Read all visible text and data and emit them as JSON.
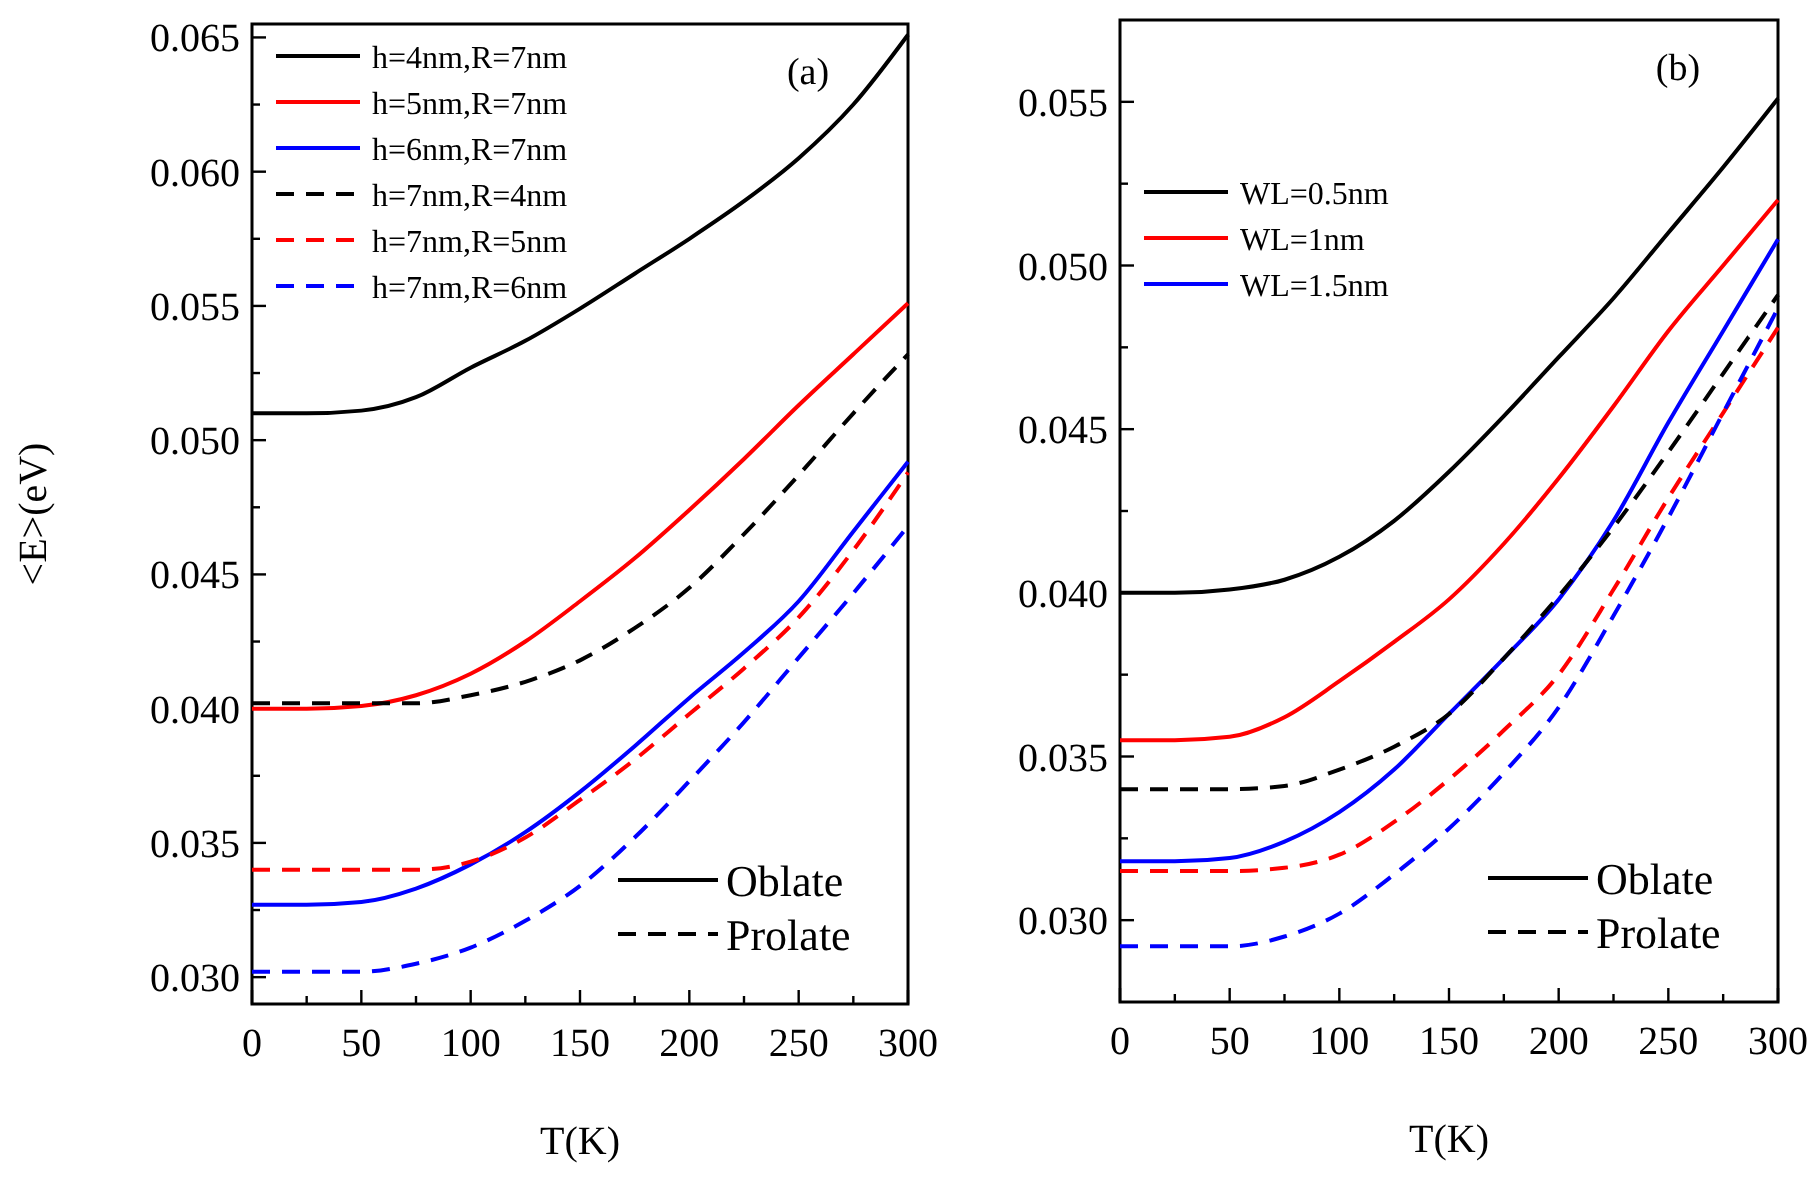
{
  "chart_data": [
    {
      "type": "line",
      "title": "(a)",
      "xlabel": "T(K)",
      "ylabel": "<E>(eV)",
      "x": [
        0,
        25,
        50,
        75,
        100,
        125,
        150,
        175,
        200,
        225,
        250,
        275,
        300
      ],
      "xlim": [
        0,
        300
      ],
      "xticks": [
        0,
        {
          "value": 25,
          "label": null
        },
        50,
        {
          "value": 75,
          "label": null
        },
        100,
        {
          "value": 125,
          "label": null
        },
        150,
        {
          "value": 175,
          "label": null
        },
        200,
        {
          "value": 225,
          "label": null
        },
        250,
        {
          "value": 275,
          "label": null
        },
        300
      ],
      "ylim": [
        0.029,
        0.0655
      ],
      "yticks": [
        {
          "value": 0.03,
          "label": "0.030"
        },
        {
          "value": 0.0325,
          "label": null
        },
        {
          "value": 0.035,
          "label": "0.035"
        },
        {
          "value": 0.0375,
          "label": null
        },
        {
          "value": 0.04,
          "label": "0.040"
        },
        {
          "value": 0.0425,
          "label": null
        },
        {
          "value": 0.045,
          "label": "0.045"
        },
        {
          "value": 0.0475,
          "label": null
        },
        {
          "value": 0.05,
          "label": "0.050"
        },
        {
          "value": 0.0525,
          "label": null
        },
        {
          "value": 0.055,
          "label": "0.055"
        },
        {
          "value": 0.0575,
          "label": null
        },
        {
          "value": 0.06,
          "label": "0.060"
        },
        {
          "value": 0.0625,
          "label": null
        },
        {
          "value": 0.065,
          "label": "0.065"
        }
      ],
      "legend": "top left",
      "annotations": [
        "Oblate",
        "Prolate"
      ],
      "series": [
        {
          "name": "h=4nm,R=7nm",
          "color": "#000000",
          "line_style": "solid",
          "values": [
            0.051,
            0.051,
            0.0511,
            0.0516,
            0.0527,
            0.0537,
            0.0549,
            0.0562,
            0.0575,
            0.0589,
            0.0605,
            0.0625,
            0.0651
          ]
        },
        {
          "name": "h=5nm,R=7nm",
          "color": "#ff0000",
          "line_style": "solid",
          "values": [
            0.04,
            0.04,
            0.0401,
            0.0405,
            0.0413,
            0.0425,
            0.044,
            0.0456,
            0.0474,
            0.0493,
            0.0513,
            0.0532,
            0.0551
          ]
        },
        {
          "name": "h=6nm,R=7nm",
          "color": "#0000ff",
          "line_style": "solid",
          "values": [
            0.0327,
            0.0327,
            0.0328,
            0.0333,
            0.0342,
            0.0354,
            0.0369,
            0.0386,
            0.0404,
            0.0421,
            0.044,
            0.0466,
            0.0492
          ]
        },
        {
          "name": "h=7nm,R=4nm",
          "color": "#000000",
          "line_style": "dashed",
          "values": [
            0.0402,
            0.0402,
            0.0402,
            0.0402,
            0.0405,
            0.041,
            0.0418,
            0.043,
            0.0445,
            0.0465,
            0.0487,
            0.051,
            0.0532
          ]
        },
        {
          "name": "h=7nm,R=5nm",
          "color": "#ff0000",
          "line_style": "dashed",
          "values": [
            0.034,
            0.034,
            0.034,
            0.034,
            0.0343,
            0.0352,
            0.0366,
            0.0381,
            0.0398,
            0.0415,
            0.0434,
            0.0459,
            0.0488
          ]
        },
        {
          "name": "h=7nm,R=6nm",
          "color": "#0000ff",
          "line_style": "dashed",
          "values": [
            0.0302,
            0.0302,
            0.0302,
            0.0305,
            0.0311,
            0.0321,
            0.0334,
            0.0352,
            0.0373,
            0.0395,
            0.0419,
            0.0443,
            0.0468
          ]
        }
      ]
    },
    {
      "type": "line",
      "title": "(b)",
      "xlabel": "T(K)",
      "x": [
        0,
        25,
        50,
        75,
        100,
        125,
        150,
        175,
        200,
        225,
        250,
        275,
        300
      ],
      "xlim": [
        0,
        300
      ],
      "xticks": [
        0,
        {
          "value": 25,
          "label": null
        },
        50,
        {
          "value": 75,
          "label": null
        },
        100,
        {
          "value": 125,
          "label": null
        },
        150,
        {
          "value": 175,
          "label": null
        },
        200,
        {
          "value": 225,
          "label": null
        },
        250,
        {
          "value": 275,
          "label": null
        },
        300
      ],
      "ylim": [
        0.0275,
        0.0575
      ],
      "yticks": [
        {
          "value": 0.03,
          "label": "0.030"
        },
        {
          "value": 0.0325,
          "label": null
        },
        {
          "value": 0.035,
          "label": "0.035"
        },
        {
          "value": 0.0375,
          "label": null
        },
        {
          "value": 0.04,
          "label": "0.040"
        },
        {
          "value": 0.0425,
          "label": null
        },
        {
          "value": 0.045,
          "label": "0.045"
        },
        {
          "value": 0.0475,
          "label": null
        },
        {
          "value": 0.05,
          "label": "0.050"
        },
        {
          "value": 0.0525,
          "label": null
        },
        {
          "value": 0.055,
          "label": "0.055"
        }
      ],
      "legend": "top left",
      "annotations": [
        "Oblate",
        "Prolate"
      ],
      "series": [
        {
          "name": "WL=0.5nm",
          "color": "#000000",
          "line_style": "solid",
          "values": [
            0.04,
            0.04,
            0.0401,
            0.0404,
            0.0411,
            0.0422,
            0.0437,
            0.0454,
            0.0472,
            0.049,
            0.051,
            0.053,
            0.0551
          ]
        },
        {
          "name": "WL=1nm",
          "color": "#ff0000",
          "line_style": "solid",
          "values": [
            0.0355,
            0.0355,
            0.0356,
            0.0362,
            0.0373,
            0.0385,
            0.0398,
            0.0415,
            0.0435,
            0.0457,
            0.048,
            0.05,
            0.052
          ]
        },
        {
          "name": "WL=1.5nm",
          "color": "#0000ff",
          "line_style": "solid",
          "values": [
            0.0318,
            0.0318,
            0.0319,
            0.0324,
            0.0333,
            0.0346,
            0.0363,
            0.038,
            0.0398,
            0.0422,
            0.0452,
            0.048,
            0.0508
          ]
        },
        {
          "color": "#000000",
          "line_style": "dashed",
          "values": [
            0.034,
            0.034,
            0.034,
            0.0341,
            0.0346,
            0.0353,
            0.0363,
            0.038,
            0.0399,
            0.042,
            0.0443,
            0.0467,
            0.0491
          ]
        },
        {
          "color": "#ff0000",
          "line_style": "dashed",
          "values": [
            0.0315,
            0.0315,
            0.0315,
            0.0316,
            0.032,
            0.033,
            0.0343,
            0.0358,
            0.0375,
            0.0401,
            0.0429,
            0.0455,
            0.0481
          ]
        },
        {
          "color": "#0000ff",
          "line_style": "dashed",
          "values": [
            0.0292,
            0.0292,
            0.0292,
            0.0295,
            0.0302,
            0.0314,
            0.0328,
            0.0345,
            0.0365,
            0.0393,
            0.0423,
            0.0455,
            0.0487
          ]
        }
      ]
    }
  ]
}
